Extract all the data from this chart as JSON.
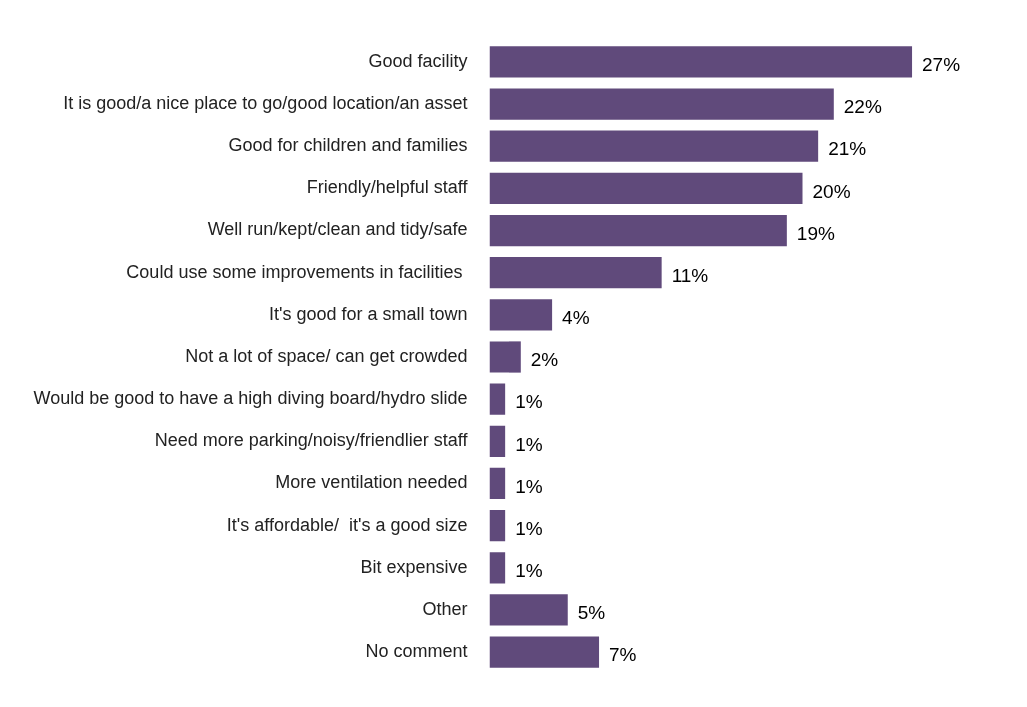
{
  "chart_data": {
    "type": "bar",
    "orientation": "horizontal",
    "categories": [
      "Good facility",
      "It is good/a nice place to go/good location/an asset",
      "Good for children and families",
      "Friendly/helpful staff",
      "Well run/kept/clean and tidy/safe",
      "Could use some improvements in facilities ",
      "It's good for a small town",
      "Not a lot of space/ can get crowded",
      "Would be good to have a high diving board/hydro slide",
      "Need more parking/noisy/friendlier staff",
      "More ventilation needed",
      "It's affordable/  it's a good size",
      "Bit expensive",
      "Other",
      "No comment"
    ],
    "values": [
      27,
      22,
      21,
      20,
      19,
      11,
      4,
      2,
      1,
      1,
      1,
      1,
      1,
      5,
      7
    ],
    "value_labels": [
      "27%",
      "22%",
      "21%",
      "20%",
      "19%",
      "11%",
      "4%",
      "2%",
      "1%",
      "1%",
      "1%",
      "1%",
      "1%",
      "5%",
      "7%"
    ],
    "color": "#604a7b",
    "grid": false,
    "legend": false
  }
}
